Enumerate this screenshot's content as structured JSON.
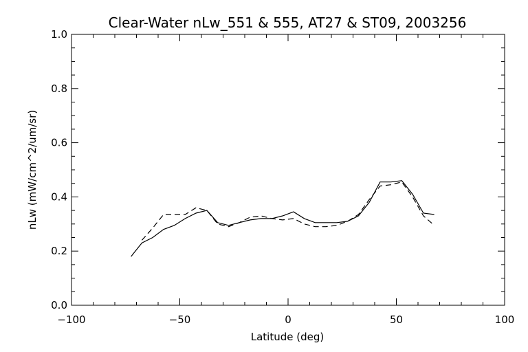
{
  "chart_data": {
    "type": "line",
    "title": "Clear-Water nLw_551 & 555, AT27 & ST09, 2003256",
    "xlabel": "Latitude (deg)",
    "ylabel": "nLw (mW/cm^2/um/sr)",
    "xlim": [
      -100,
      100
    ],
    "ylim": [
      0.0,
      1.0
    ],
    "xticks": [
      -100,
      -50,
      0,
      50,
      100
    ],
    "xtick_labels": [
      "−100",
      "−50",
      "0",
      "50",
      "100"
    ],
    "yticks": [
      0.0,
      0.2,
      0.4,
      0.6,
      0.8,
      1.0
    ],
    "ytick_labels": [
      "0.0",
      "0.2",
      "0.4",
      "0.6",
      "0.8",
      "1.0"
    ],
    "grid": false,
    "series": [
      {
        "style": "solid",
        "x": [
          -72.5,
          -67.5,
          -62.5,
          -57.5,
          -52.5,
          -47.5,
          -42.5,
          -37.5,
          -32.5,
          -27.5,
          -22.5,
          -17.5,
          -12.5,
          -7.5,
          -2.5,
          2.5,
          7.5,
          12.5,
          17.5,
          22.5,
          27.5,
          32.5,
          37.5,
          42.5,
          47.5,
          52.5,
          57.5,
          62.5,
          67.5
        ],
        "y": [
          0.18,
          0.23,
          0.25,
          0.28,
          0.295,
          0.32,
          0.34,
          0.35,
          0.305,
          0.295,
          0.305,
          0.315,
          0.32,
          0.32,
          0.33,
          0.345,
          0.32,
          0.305,
          0.305,
          0.305,
          0.31,
          0.33,
          0.38,
          0.455,
          0.455,
          0.46,
          0.41,
          0.34,
          0.335
        ]
      },
      {
        "style": "dashed",
        "x": [
          -67.5,
          -62.5,
          -57.5,
          -52.5,
          -47.5,
          -42.5,
          -37.5,
          -32.5,
          -27.5,
          -22.5,
          -17.5,
          -12.5,
          -7.5,
          -2.5,
          2.5,
          7.5,
          12.5,
          17.5,
          22.5,
          27.5,
          32.5,
          37.5,
          42.5,
          47.5,
          52.5,
          57.5,
          62.5,
          67.5
        ],
        "y": [
          0.24,
          0.285,
          0.335,
          0.335,
          0.335,
          0.36,
          0.35,
          0.3,
          0.29,
          0.305,
          0.325,
          0.33,
          0.32,
          0.315,
          0.32,
          0.3,
          0.29,
          0.29,
          0.295,
          0.31,
          0.335,
          0.39,
          0.44,
          0.445,
          0.455,
          0.4,
          0.33,
          0.295
        ]
      }
    ]
  }
}
